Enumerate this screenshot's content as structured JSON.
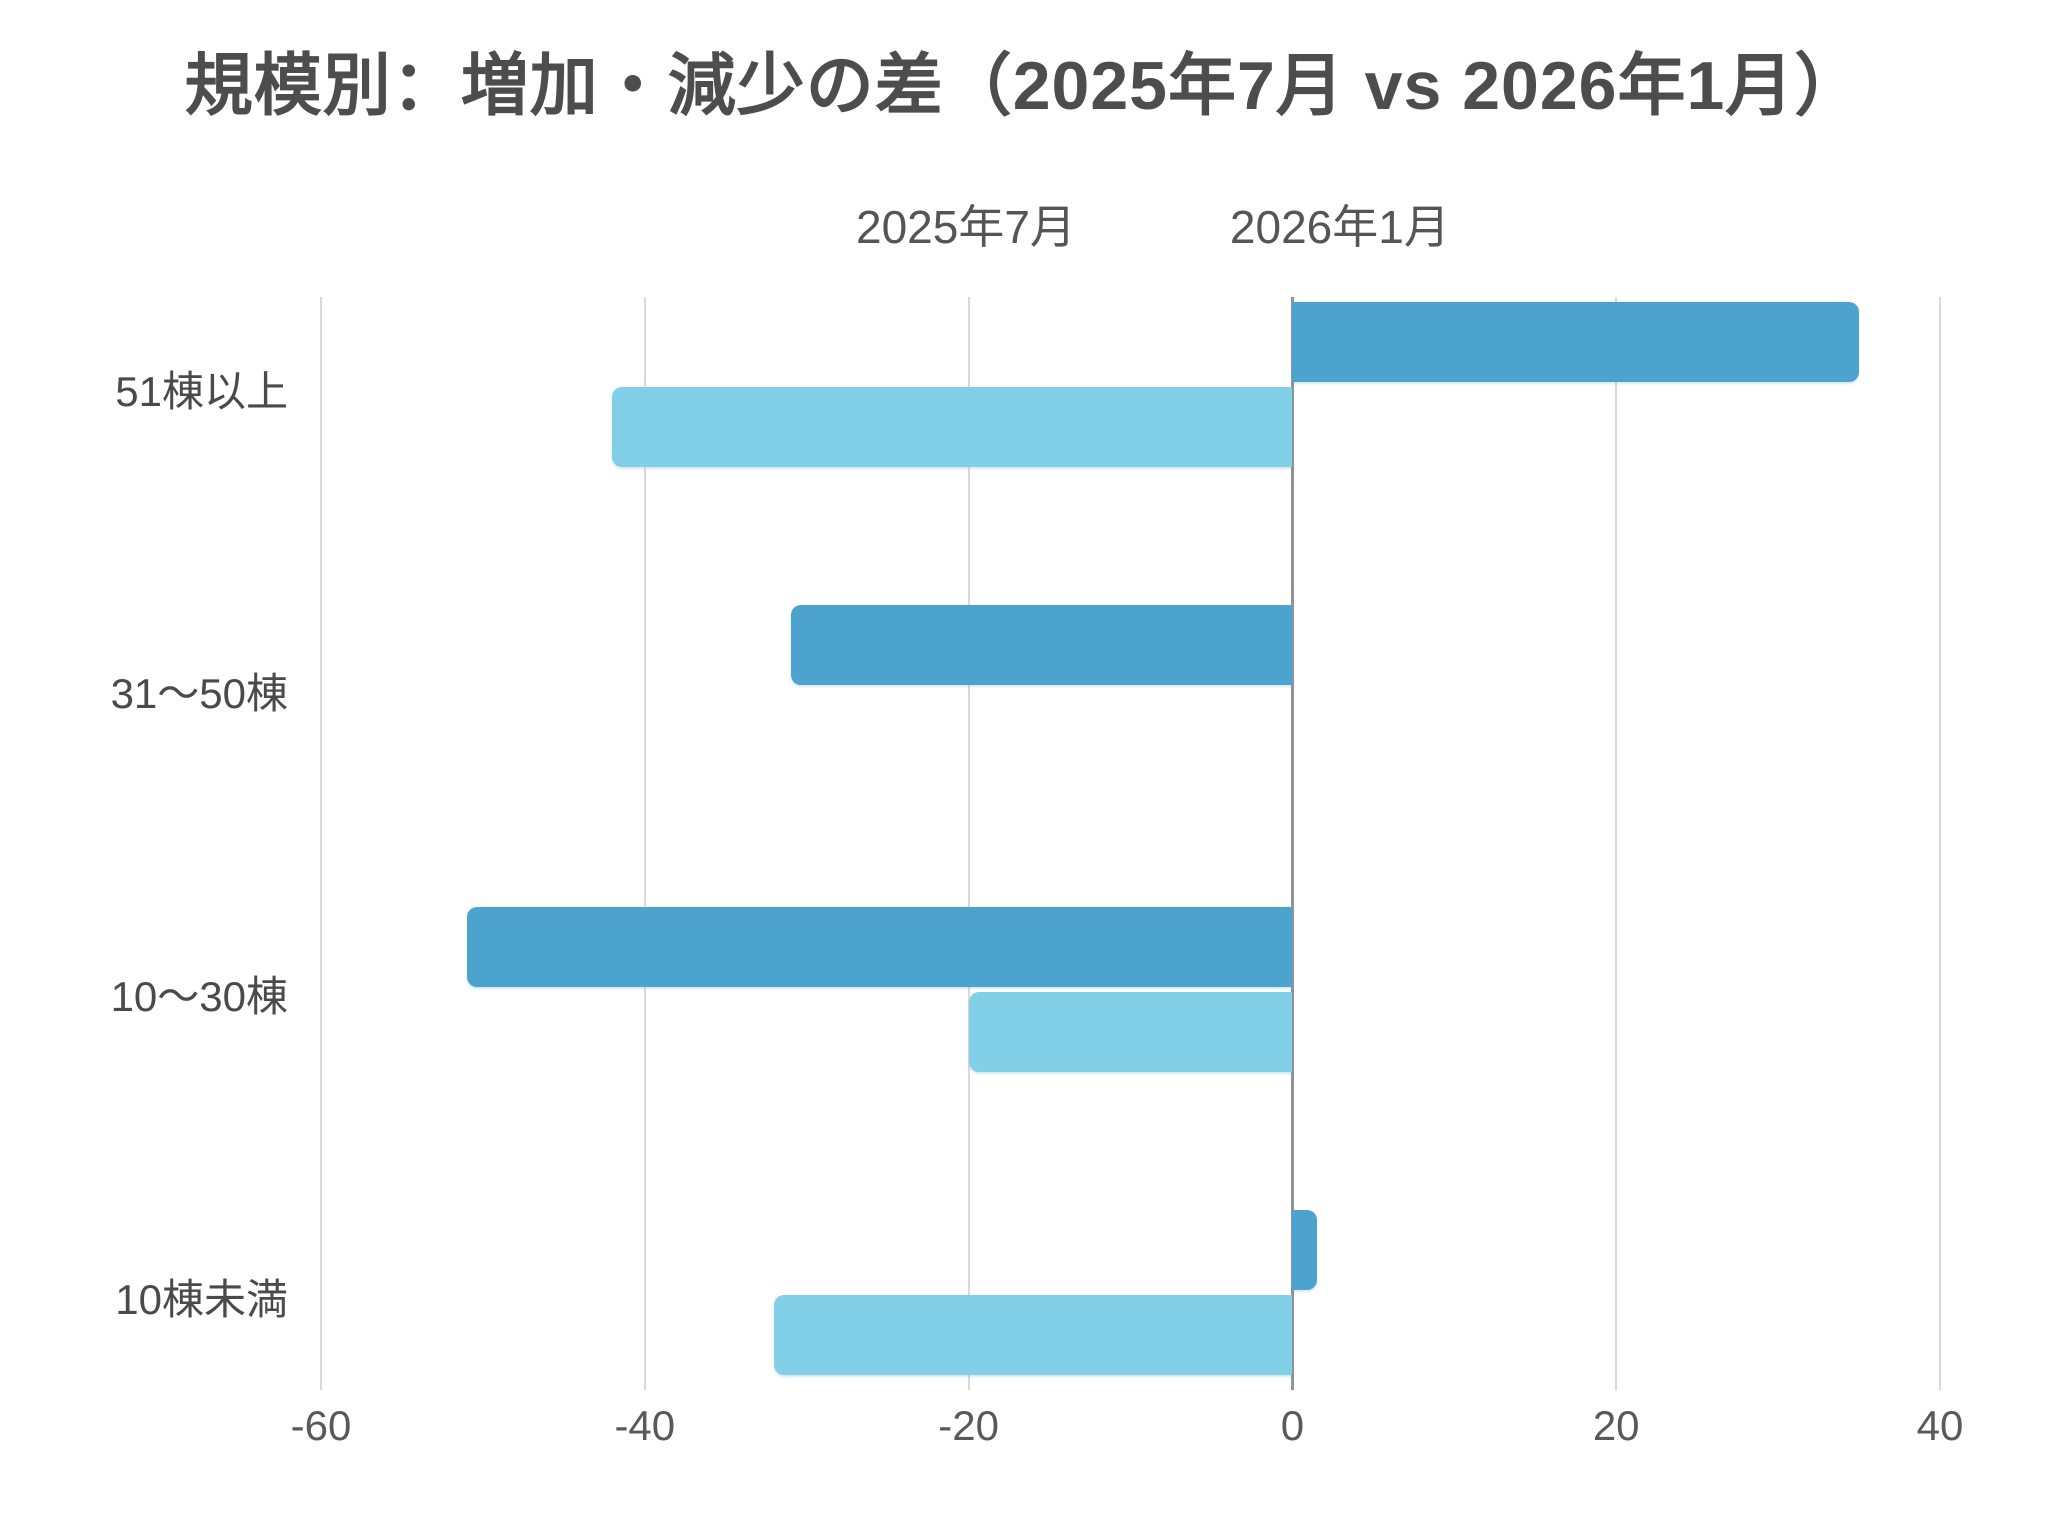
{
  "chart_data": {
    "type": "bar",
    "orientation": "horizontal",
    "title": "規模別：増加・減少の差（2025年7月 vs 2026年1月）",
    "categories": [
      "51棟以上",
      "31〜50棟",
      "10〜30棟",
      "10棟未満"
    ],
    "series": [
      {
        "name": "2025年7月",
        "color": "#4ba3ce",
        "values": [
          35,
          -31,
          -51,
          1.5
        ]
      },
      {
        "name": "2026年1月",
        "color": "#82d0e8",
        "values": [
          -42,
          0,
          -20,
          -32
        ]
      }
    ],
    "xlim": [
      -60,
      40
    ],
    "xticks": [
      -60,
      -40,
      -20,
      0,
      20,
      40
    ],
    "xlabel": "",
    "ylabel": "",
    "grid": true,
    "legend_position": "top",
    "zero_line": true,
    "colors": {
      "grid": "#d9d9d9",
      "zero_axis": "#8f9499",
      "title_text": "#4d4d4d",
      "label_text": "#4a4a4a",
      "tick_text": "#595959"
    }
  }
}
